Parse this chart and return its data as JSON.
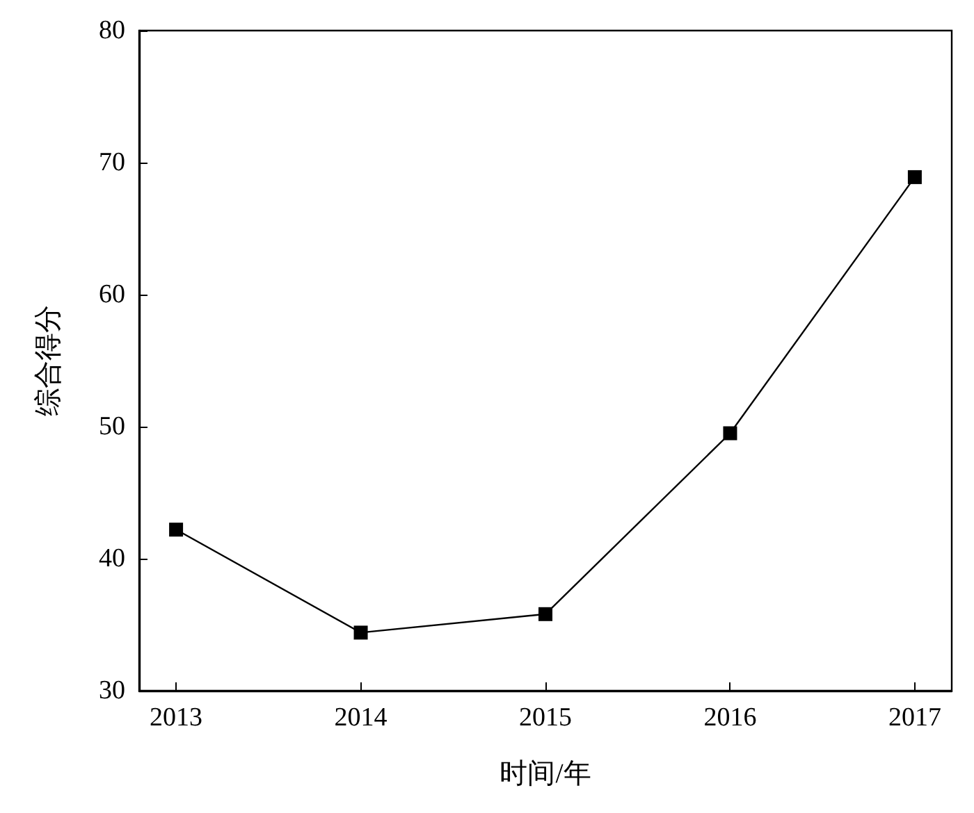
{
  "chart_data": {
    "type": "line",
    "xlabel": "时间/年",
    "ylabel": "综合得分",
    "x": [
      2013,
      2014,
      2015,
      2016,
      2017
    ],
    "series": [
      {
        "color": "#000000",
        "values": [
          42.2,
          34.4,
          35.8,
          49.5,
          68.9
        ]
      }
    ],
    "xlim": [
      2012.8,
      2017.2
    ],
    "xticks": [
      2013,
      2014,
      2015,
      2016,
      2017
    ],
    "ylim": [
      30,
      80
    ],
    "yticks": [
      30,
      40,
      50,
      60,
      70,
      80
    ],
    "grid": false,
    "marker": "square",
    "line_style": "solid"
  }
}
